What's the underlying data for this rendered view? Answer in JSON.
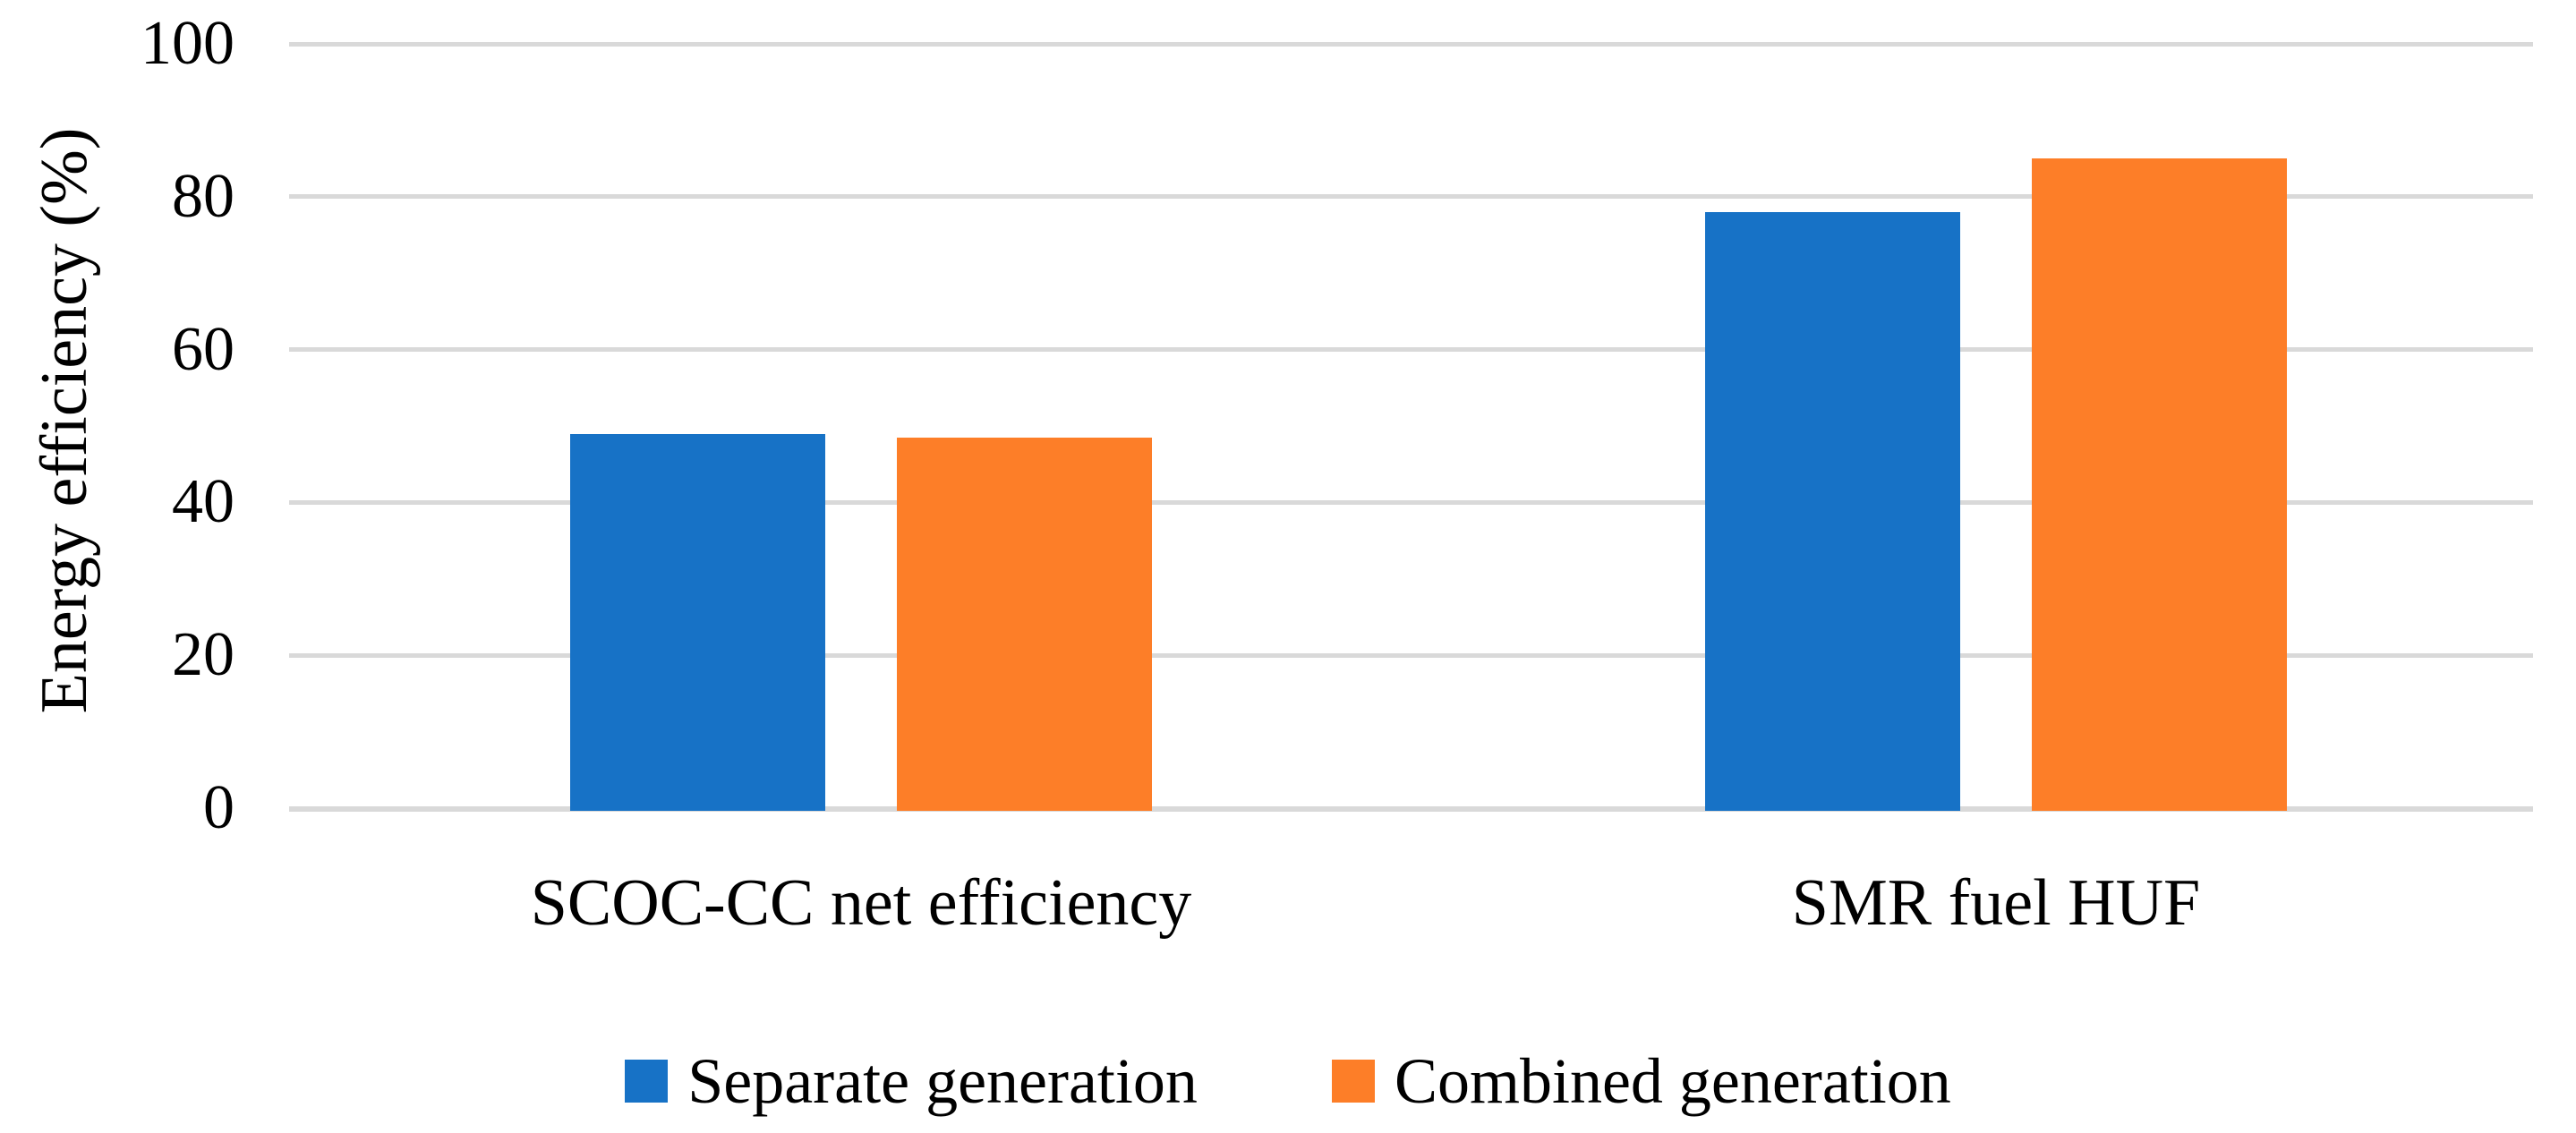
{
  "chart_data": {
    "type": "bar",
    "title": "",
    "categories": [
      "SCOC-CC net efficiency",
      "SMR fuel HUF"
    ],
    "series": [
      {
        "name": "Separate generation",
        "color": "#1772c6",
        "values": [
          49,
          78
        ]
      },
      {
        "name": "Combined generation",
        "color": "#fd7e28",
        "values": [
          48.5,
          85
        ]
      }
    ],
    "xlabel": "",
    "ylabel": "Energy efficiency (%)",
    "ylim": [
      0,
      100
    ],
    "yticks": [
      0,
      20,
      40,
      60,
      80,
      100
    ],
    "grid": "horizontal",
    "gridline_color": "#d9d9d9",
    "background_color": "#ffffff",
    "text_color": "#000000",
    "legend_position": "bottom"
  }
}
